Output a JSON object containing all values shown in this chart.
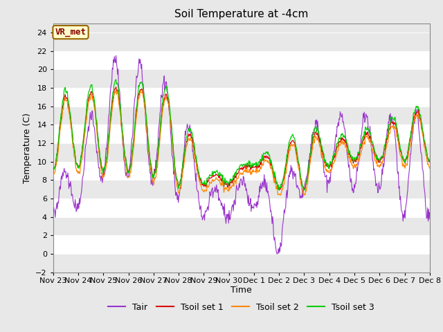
{
  "title": "Soil Temperature at -4cm",
  "xlabel": "Time",
  "ylabel": "Temperature (C)",
  "ylim": [
    -2,
    25
  ],
  "yticks": [
    -2,
    0,
    2,
    4,
    6,
    8,
    10,
    12,
    14,
    16,
    18,
    20,
    22,
    24
  ],
  "fig_bg_color": "#e8e8e8",
  "plot_bg_color": "#e8e8e8",
  "band_colors": [
    "#e8e8e8",
    "#ffffff"
  ],
  "line_colors": {
    "Tair": "#9933cc",
    "Tsoil_set1": "#dd0000",
    "Tsoil_set2": "#ff8800",
    "Tsoil_set3": "#00cc00"
  },
  "annotation_text": "VR_met",
  "annotation_bg": "#ffffcc",
  "annotation_border": "#996600",
  "x_tick_labels": [
    "Nov 23",
    "Nov 24",
    "Nov 25",
    "Nov 26",
    "Nov 27",
    "Nov 28",
    "Nov 29",
    "Nov 30",
    "Dec 1",
    "Dec 2",
    "Dec 3",
    "Dec 4",
    "Dec 5",
    "Dec 6",
    "Dec 7",
    "Dec 8"
  ],
  "legend_entries": [
    "Tair",
    "Tsoil set 1",
    "Tsoil set 2",
    "Tsoil set 3"
  ]
}
